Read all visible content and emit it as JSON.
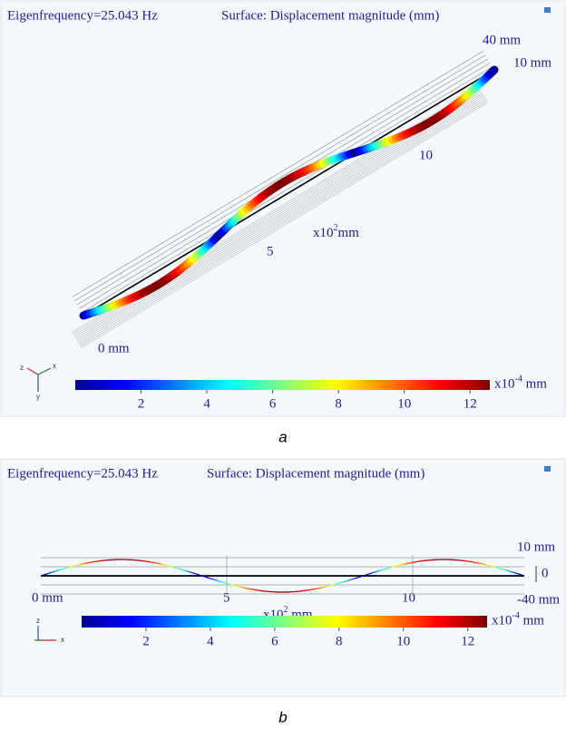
{
  "panels": [
    {
      "caption": "a",
      "title": [
        "Eigenfrequency=25.043 Hz",
        "Surface: Displacement magnitude (mm)"
      ],
      "axis_labels": [
        "40 mm",
        "10 mm",
        "10",
        "5",
        "0 mm"
      ],
      "axis_unit": {
        "base": "x10",
        "exp": "2",
        "suffix": "mm"
      },
      "triad": [
        "z",
        "x",
        "y"
      ],
      "colorbar": {
        "lim": [
          0,
          12.6
        ],
        "ticks": [
          2,
          4,
          6,
          8,
          10,
          12
        ],
        "unit": {
          "base": "x10",
          "exp": "-4",
          "suffix": " mm"
        }
      }
    },
    {
      "caption": "b",
      "title": [
        "Eigenfrequency=25.043 Hz",
        "Surface: Displacement magnitude (mm)"
      ],
      "axis_labels": [
        "10 mm",
        "0",
        "-40 mm",
        "0 mm",
        "5",
        "10"
      ],
      "axis_unit": {
        "base": "x10",
        "exp": "2",
        "suffix": " mm"
      },
      "triad": [
        "z",
        "x"
      ],
      "colorbar": {
        "lim": [
          0,
          12.6
        ],
        "ticks": [
          2,
          4,
          6,
          8,
          10,
          12
        ],
        "unit": {
          "base": "x10",
          "exp": "-4",
          "suffix": " mm"
        }
      }
    }
  ]
}
